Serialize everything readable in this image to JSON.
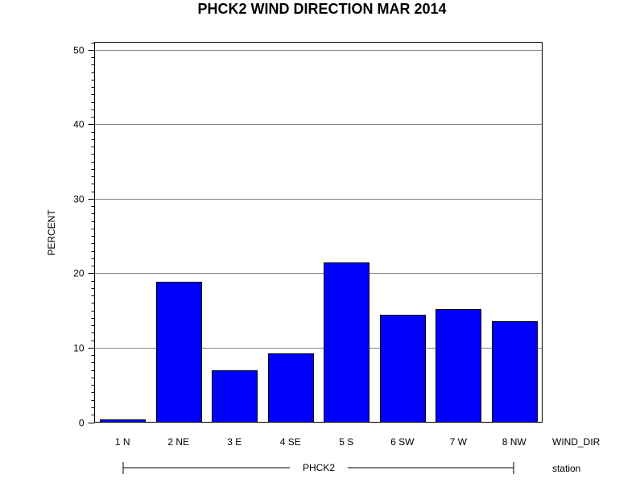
{
  "chart_data": {
    "type": "bar",
    "title": "PHCK2 WIND DIRECTION MAR 2014",
    "ylabel": "PERCENT",
    "xlabel": "WIND_DIR",
    "group_axis_label": "station",
    "group_label": "PHCK2",
    "categories": [
      "1 N",
      "2 NE",
      "3 E",
      "4 SE",
      "5 S",
      "6 SW",
      "7 W",
      "8 NW"
    ],
    "values": [
      0.4,
      18.9,
      7.0,
      9.2,
      21.5,
      14.4,
      15.2,
      13.6
    ],
    "ylim": [
      0,
      51
    ],
    "yticks": [
      0,
      10,
      20,
      30,
      40,
      50
    ],
    "grid": true,
    "bar_color": "#0000ff"
  }
}
